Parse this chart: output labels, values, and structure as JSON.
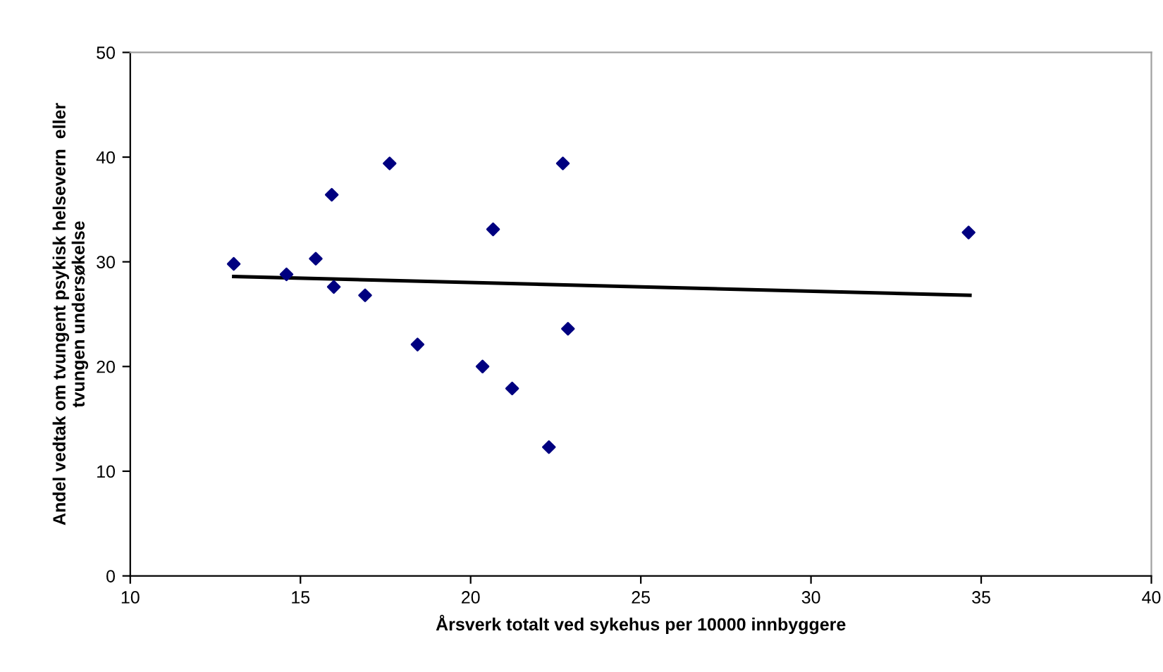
{
  "chart_data": {
    "type": "scatter",
    "xlabel": "Årsverk totalt ved sykehus per 10000 innbyggere",
    "ylabel": "Andel vedtak om tvungent psykisk helsevern  eller\ntvungen undersøkelse",
    "series": [
      {
        "color": "#000080",
        "marker": "diamond",
        "x": [
          13.04,
          14.59,
          15.45,
          15.92,
          15.98,
          16.9,
          17.62,
          18.44,
          20.35,
          20.66,
          21.22,
          22.3,
          22.71,
          22.86,
          34.63
        ],
        "values": [
          29.8,
          28.8,
          30.3,
          36.4,
          27.6,
          26.8,
          39.4,
          22.1,
          20.0,
          33.1,
          17.9,
          12.3,
          39.4,
          23.6,
          32.8
        ]
      },
      {
        "type": "line",
        "color": "#000000",
        "x": [
          13.04,
          34.67
        ],
        "values": [
          28.6,
          26.8
        ]
      }
    ],
    "xlim": [
      10,
      40
    ],
    "xticks": [
      10,
      15,
      20,
      25,
      30,
      35,
      40
    ],
    "ylim": [
      0,
      50
    ],
    "yticks": [
      0,
      10,
      20,
      30,
      40,
      50
    ],
    "grid": false,
    "legend": false
  }
}
